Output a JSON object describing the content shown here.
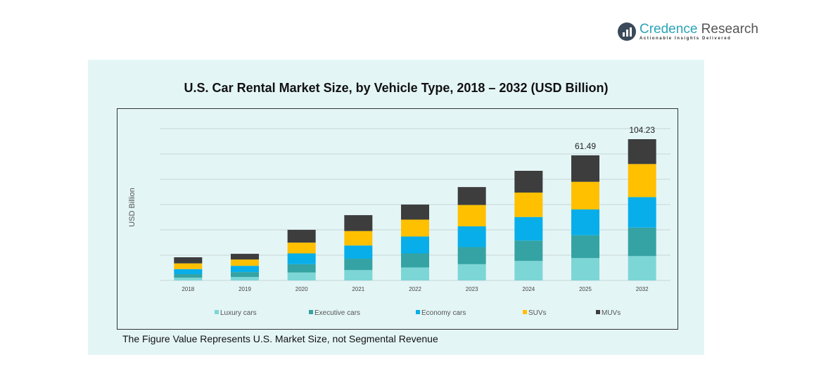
{
  "brand": {
    "name_part1": "Credence",
    "name_part2": " Research",
    "tagline": "Actionable Insights Delivered"
  },
  "footnote": "The Figure Value Represents U.S. Market Size, not Segmental Revenue",
  "chart_data": {
    "type": "bar",
    "stacked": true,
    "title": "U.S. Car Rental Market Size, by Vehicle Type, 2018 – 2032 (USD Billion)",
    "xlabel": "",
    "ylabel": "USD Billion",
    "categories": [
      "2018",
      "2019",
      "2020",
      "2021",
      "2022",
      "2023",
      "2024",
      "2025",
      "2032"
    ],
    "series": [
      {
        "name": "Luxury cars",
        "color": "#7dd6d6",
        "values": [
          1.4,
          1.7,
          3.9,
          5.1,
          6.4,
          8.0,
          9.6,
          11.0,
          18.0
        ]
      },
      {
        "name": "Executive cars",
        "color": "#35a3a3",
        "values": [
          1.7,
          2.4,
          4.1,
          5.6,
          6.9,
          8.4,
          10.0,
          11.2,
          21.0
        ]
      },
      {
        "name": "Economy cars",
        "color": "#08aeea",
        "values": [
          2.5,
          3.1,
          5.3,
          6.5,
          8.3,
          10.2,
          11.6,
          12.7,
          22.5
        ]
      },
      {
        "name": "SUVs",
        "color": "#ffc000",
        "values": [
          2.8,
          3.1,
          5.3,
          7.1,
          8.3,
          10.5,
          12.0,
          13.6,
          24.4
        ]
      },
      {
        "name": "MUVs",
        "color": "#3d3d3d",
        "values": [
          3.0,
          2.8,
          6.3,
          7.8,
          7.4,
          8.8,
          10.7,
          13.0,
          18.33
        ]
      }
    ],
    "totals_labels": {
      "2025": "61.49",
      "2032": "104.23"
    },
    "ylim": [
      0,
      70
    ],
    "grid": true,
    "legend": "bottom"
  }
}
